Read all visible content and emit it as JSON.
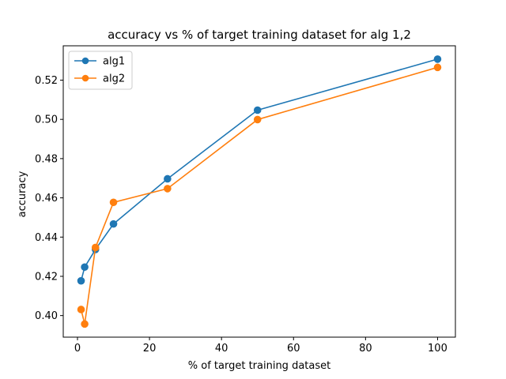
{
  "chart_data": {
    "type": "line",
    "title": "accuracy vs % of target training dataset for alg 1,2",
    "xlabel": "% of target training dataset",
    "ylabel": "accuracy",
    "xlim": [
      -3.95,
      104.95
    ],
    "ylim": [
      0.389,
      0.5375
    ],
    "xticks": [
      0,
      20,
      40,
      60,
      80,
      100
    ],
    "xtick_labels": [
      "0",
      "20",
      "40",
      "60",
      "80",
      "100"
    ],
    "yticks": [
      0.4,
      0.42,
      0.44,
      0.46,
      0.48,
      0.5,
      0.52
    ],
    "ytick_labels": [
      "0.40",
      "0.42",
      "0.44",
      "0.46",
      "0.48",
      "0.50",
      "0.52"
    ],
    "grid": false,
    "legend_position": "top-left",
    "x": [
      1,
      2,
      5,
      10,
      25,
      50,
      100
    ],
    "series": [
      {
        "name": "alg1",
        "color": "#1f77b4",
        "values": [
          0.4177,
          0.4247,
          0.4337,
          0.4467,
          0.4697,
          0.5047,
          0.5307
        ]
      },
      {
        "name": "alg2",
        "color": "#ff7f0e",
        "values": [
          0.4031,
          0.3957,
          0.4347,
          0.4577,
          0.4647,
          0.4999,
          0.5265
        ]
      }
    ]
  }
}
